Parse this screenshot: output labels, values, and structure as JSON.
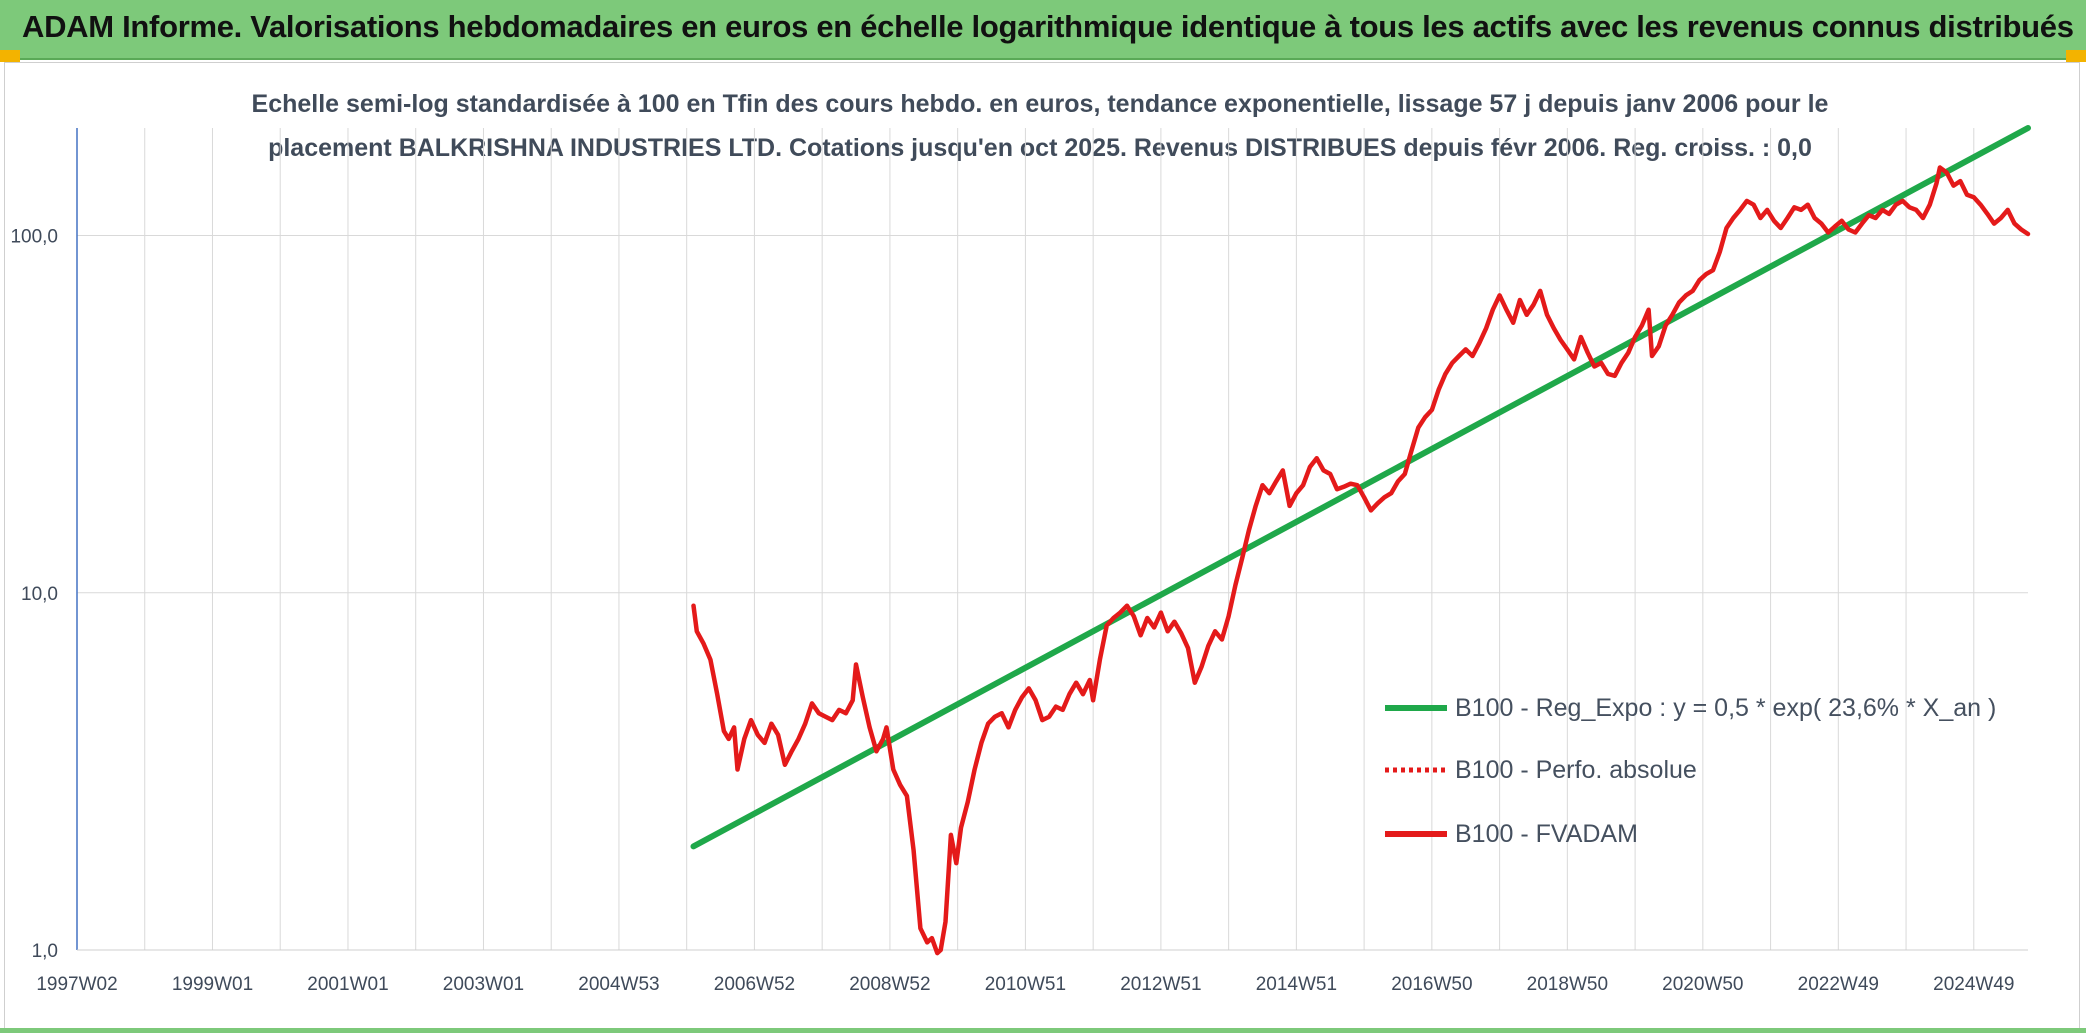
{
  "header": {
    "title": "ADAM Informe. Valorisations hebdomadaires en euros en échelle logarithmique identique à tous les actifs avec les revenus connus distribués"
  },
  "chart_data": {
    "type": "line",
    "title_line1": "Echelle semi-log standardisée à 100 en Tfin des cours hebdo. en euros, tendance exponentielle, lissage 57 j depuis janv 2006 pour le",
    "title_line2": "placement BALKRISHNA INDUSTRIES LTD. Cotations jusqu'en oct 2025. Revenus DISTRIBUES depuis févr 2006. Reg. croiss. : 0,0",
    "y_scale": "log",
    "ylim": [
      1,
      200
    ],
    "y_ticks": [
      {
        "value": 1,
        "label": "1,0"
      },
      {
        "value": 10,
        "label": "10,0"
      },
      {
        "value": 100,
        "label": "100,0"
      }
    ],
    "xlim": [
      1997.0,
      2025.8
    ],
    "x_ticks": [
      {
        "value": 1997.0,
        "label": "1997W02"
      },
      {
        "value": 1999.0,
        "label": "1999W01"
      },
      {
        "value": 2001.0,
        "label": "2001W01"
      },
      {
        "value": 2003.0,
        "label": "2003W01"
      },
      {
        "value": 2005.0,
        "label": "2004W53"
      },
      {
        "value": 2007.0,
        "label": "2006W52"
      },
      {
        "value": 2009.0,
        "label": "2008W52"
      },
      {
        "value": 2011.0,
        "label": "2010W51"
      },
      {
        "value": 2013.0,
        "label": "2012W51"
      },
      {
        "value": 2015.0,
        "label": "2014W51"
      },
      {
        "value": 2017.0,
        "label": "2016W50"
      },
      {
        "value": 2019.0,
        "label": "2018W50"
      },
      {
        "value": 2021.0,
        "label": "2020W50"
      },
      {
        "value": 2023.0,
        "label": "2022W49"
      },
      {
        "value": 2025.0,
        "label": "2024W49"
      }
    ],
    "grid": true,
    "legend_position": "center-right",
    "series": [
      {
        "name": "B100 - Reg_Expo : y = 0,5 * exp( 23,6% *  X_an )",
        "color": "#1fa84a",
        "style": "solid",
        "points": [
          [
            2006.1,
            1.95
          ],
          [
            2025.8,
            200
          ]
        ]
      },
      {
        "name": "B100 - Perfo. absolue",
        "color": "#e41a1a",
        "style": "dotted",
        "points": []
      },
      {
        "name": "B100 - FVADAM",
        "color": "#e41a1a",
        "style": "solid",
        "points": [
          [
            2006.1,
            9.2
          ],
          [
            2006.15,
            7.8
          ],
          [
            2006.25,
            7.2
          ],
          [
            2006.35,
            6.5
          ],
          [
            2006.45,
            5.2
          ],
          [
            2006.55,
            4.1
          ],
          [
            2006.62,
            3.9
          ],
          [
            2006.7,
            4.2
          ],
          [
            2006.75,
            3.2
          ],
          [
            2006.85,
            3.9
          ],
          [
            2006.95,
            4.4
          ],
          [
            2007.05,
            4.0
          ],
          [
            2007.15,
            3.8
          ],
          [
            2007.25,
            4.3
          ],
          [
            2007.35,
            4.0
          ],
          [
            2007.45,
            3.3
          ],
          [
            2007.55,
            3.6
          ],
          [
            2007.65,
            3.9
          ],
          [
            2007.75,
            4.3
          ],
          [
            2007.85,
            4.9
          ],
          [
            2007.95,
            4.6
          ],
          [
            2008.05,
            4.5
          ],
          [
            2008.15,
            4.4
          ],
          [
            2008.25,
            4.7
          ],
          [
            2008.35,
            4.6
          ],
          [
            2008.45,
            5.0
          ],
          [
            2008.5,
            6.3
          ],
          [
            2008.6,
            5.1
          ],
          [
            2008.7,
            4.2
          ],
          [
            2008.8,
            3.6
          ],
          [
            2008.9,
            3.9
          ],
          [
            2008.95,
            4.2
          ],
          [
            2009.05,
            3.2
          ],
          [
            2009.15,
            2.9
          ],
          [
            2009.25,
            2.7
          ],
          [
            2009.35,
            1.9
          ],
          [
            2009.45,
            1.15
          ],
          [
            2009.55,
            1.05
          ],
          [
            2009.62,
            1.08
          ],
          [
            2009.7,
            0.98
          ],
          [
            2009.75,
            1.0
          ],
          [
            2009.82,
            1.2
          ],
          [
            2009.9,
            2.1
          ],
          [
            2009.98,
            1.75
          ],
          [
            2010.05,
            2.2
          ],
          [
            2010.15,
            2.6
          ],
          [
            2010.25,
            3.2
          ],
          [
            2010.35,
            3.8
          ],
          [
            2010.45,
            4.3
          ],
          [
            2010.55,
            4.5
          ],
          [
            2010.65,
            4.6
          ],
          [
            2010.75,
            4.2
          ],
          [
            2010.85,
            4.7
          ],
          [
            2010.95,
            5.1
          ],
          [
            2011.05,
            5.4
          ],
          [
            2011.15,
            5.0
          ],
          [
            2011.25,
            4.4
          ],
          [
            2011.35,
            4.5
          ],
          [
            2011.45,
            4.8
          ],
          [
            2011.55,
            4.7
          ],
          [
            2011.65,
            5.2
          ],
          [
            2011.75,
            5.6
          ],
          [
            2011.85,
            5.2
          ],
          [
            2011.95,
            5.7
          ],
          [
            2012.0,
            5.0
          ],
          [
            2012.1,
            6.5
          ],
          [
            2012.2,
            8.1
          ],
          [
            2012.3,
            8.5
          ],
          [
            2012.4,
            8.8
          ],
          [
            2012.5,
            9.2
          ],
          [
            2012.6,
            8.6
          ],
          [
            2012.7,
            7.6
          ],
          [
            2012.8,
            8.5
          ],
          [
            2012.9,
            8.0
          ],
          [
            2013.0,
            8.8
          ],
          [
            2013.1,
            7.8
          ],
          [
            2013.2,
            8.3
          ],
          [
            2013.3,
            7.7
          ],
          [
            2013.4,
            7.0
          ],
          [
            2013.5,
            5.6
          ],
          [
            2013.6,
            6.2
          ],
          [
            2013.7,
            7.1
          ],
          [
            2013.8,
            7.8
          ],
          [
            2013.9,
            7.4
          ],
          [
            2014.0,
            8.6
          ],
          [
            2014.1,
            10.5
          ],
          [
            2014.2,
            12.5
          ],
          [
            2014.3,
            15.0
          ],
          [
            2014.4,
            17.5
          ],
          [
            2014.5,
            20.0
          ],
          [
            2014.6,
            19.0
          ],
          [
            2014.7,
            20.5
          ],
          [
            2014.8,
            22.0
          ],
          [
            2014.9,
            17.5
          ],
          [
            2015.0,
            19.0
          ],
          [
            2015.1,
            20.0
          ],
          [
            2015.2,
            22.5
          ],
          [
            2015.3,
            23.8
          ],
          [
            2015.4,
            22.0
          ],
          [
            2015.5,
            21.5
          ],
          [
            2015.6,
            19.5
          ],
          [
            2015.7,
            19.8
          ],
          [
            2015.8,
            20.2
          ],
          [
            2015.9,
            20.0
          ],
          [
            2016.0,
            18.5
          ],
          [
            2016.1,
            17.0
          ],
          [
            2016.2,
            17.8
          ],
          [
            2016.3,
            18.5
          ],
          [
            2016.4,
            19.0
          ],
          [
            2016.5,
            20.5
          ],
          [
            2016.6,
            21.5
          ],
          [
            2016.7,
            25.0
          ],
          [
            2016.8,
            29.0
          ],
          [
            2016.9,
            31.0
          ],
          [
            2017.0,
            32.5
          ],
          [
            2017.1,
            37.0
          ],
          [
            2017.2,
            41.0
          ],
          [
            2017.3,
            44.0
          ],
          [
            2017.4,
            46.0
          ],
          [
            2017.5,
            48.0
          ],
          [
            2017.6,
            46.0
          ],
          [
            2017.7,
            50.0
          ],
          [
            2017.8,
            55.0
          ],
          [
            2017.9,
            62.0
          ],
          [
            2018.0,
            68.0
          ],
          [
            2018.1,
            62.0
          ],
          [
            2018.2,
            57.0
          ],
          [
            2018.3,
            66.0
          ],
          [
            2018.4,
            60.0
          ],
          [
            2018.5,
            64.0
          ],
          [
            2018.6,
            70.0
          ],
          [
            2018.7,
            60.0
          ],
          [
            2018.8,
            55.0
          ],
          [
            2018.9,
            51.0
          ],
          [
            2019.0,
            48.0
          ],
          [
            2019.1,
            45.0
          ],
          [
            2019.2,
            52.0
          ],
          [
            2019.3,
            47.0
          ],
          [
            2019.4,
            43.0
          ],
          [
            2019.5,
            44.0
          ],
          [
            2019.6,
            41.0
          ],
          [
            2019.7,
            40.5
          ],
          [
            2019.8,
            44.0
          ],
          [
            2019.9,
            47.0
          ],
          [
            2020.0,
            52.0
          ],
          [
            2020.1,
            56.0
          ],
          [
            2020.2,
            62.0
          ],
          [
            2020.25,
            46.0
          ],
          [
            2020.35,
            49.0
          ],
          [
            2020.45,
            56.0
          ],
          [
            2020.55,
            60.0
          ],
          [
            2020.65,
            65.0
          ],
          [
            2020.75,
            68.0
          ],
          [
            2020.85,
            70.0
          ],
          [
            2020.95,
            75.0
          ],
          [
            2021.05,
            78.0
          ],
          [
            2021.15,
            80.0
          ],
          [
            2021.25,
            90.0
          ],
          [
            2021.35,
            105.0
          ],
          [
            2021.45,
            112.0
          ],
          [
            2021.55,
            118.0
          ],
          [
            2021.65,
            125.0
          ],
          [
            2021.75,
            122.0
          ],
          [
            2021.85,
            112.0
          ],
          [
            2021.95,
            118.0
          ],
          [
            2022.05,
            110.0
          ],
          [
            2022.15,
            105.0
          ],
          [
            2022.25,
            112.0
          ],
          [
            2022.35,
            120.0
          ],
          [
            2022.45,
            118.0
          ],
          [
            2022.55,
            122.0
          ],
          [
            2022.65,
            112.0
          ],
          [
            2022.75,
            108.0
          ],
          [
            2022.85,
            102.0
          ],
          [
            2022.95,
            106.0
          ],
          [
            2023.05,
            110.0
          ],
          [
            2023.15,
            104.0
          ],
          [
            2023.25,
            102.0
          ],
          [
            2023.35,
            108.0
          ],
          [
            2023.45,
            114.0
          ],
          [
            2023.55,
            112.0
          ],
          [
            2023.65,
            118.0
          ],
          [
            2023.75,
            115.0
          ],
          [
            2023.85,
            122.0
          ],
          [
            2023.95,
            125.0
          ],
          [
            2024.05,
            120.0
          ],
          [
            2024.15,
            118.0
          ],
          [
            2024.25,
            112.0
          ],
          [
            2024.35,
            122.0
          ],
          [
            2024.45,
            140.0
          ],
          [
            2024.5,
            155.0
          ],
          [
            2024.6,
            150.0
          ],
          [
            2024.7,
            138.0
          ],
          [
            2024.8,
            142.0
          ],
          [
            2024.9,
            130.0
          ],
          [
            2025.0,
            128.0
          ],
          [
            2025.1,
            122.0
          ],
          [
            2025.2,
            115.0
          ],
          [
            2025.3,
            108.0
          ],
          [
            2025.4,
            112.0
          ],
          [
            2025.5,
            118.0
          ],
          [
            2025.6,
            108.0
          ],
          [
            2025.7,
            104.0
          ],
          [
            2025.8,
            101.0
          ]
        ]
      }
    ]
  }
}
